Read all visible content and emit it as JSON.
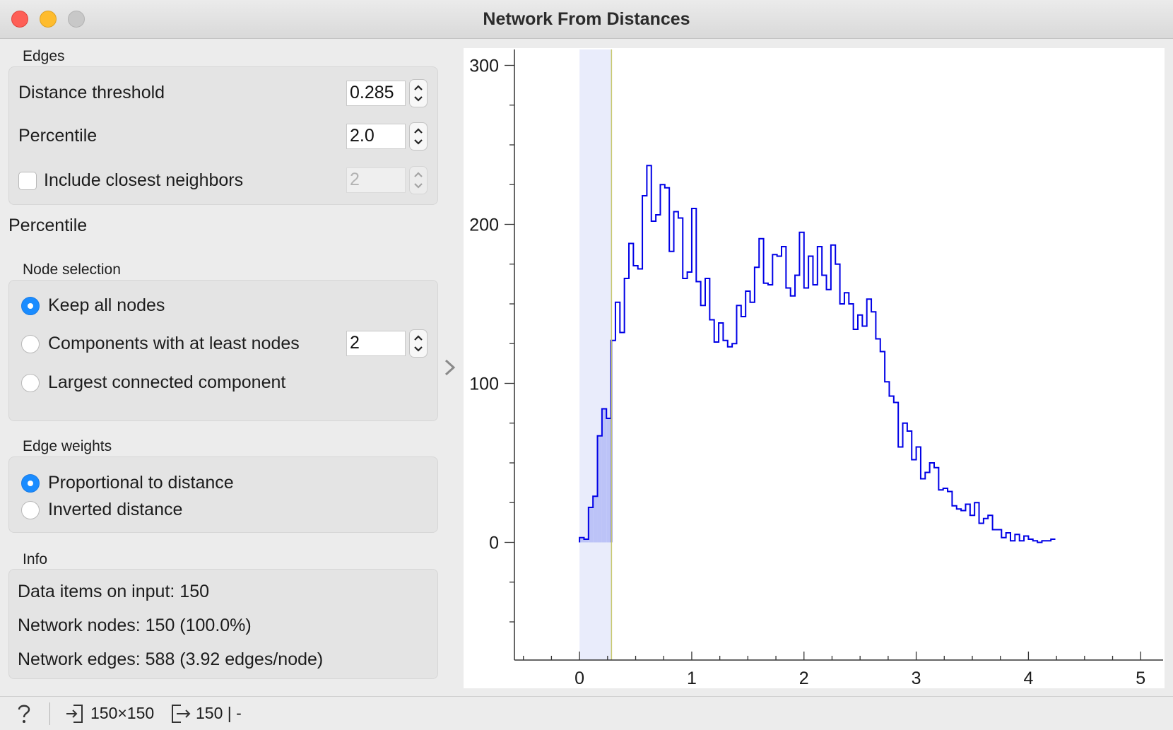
{
  "window": {
    "title": "Network From Distances"
  },
  "edges": {
    "group_title": "Edges",
    "distance_threshold": {
      "label": "Distance threshold",
      "value": "0.285"
    },
    "percentile": {
      "label": "Percentile",
      "value": "2.0"
    },
    "closest_neighbors": {
      "label": "Include closest neighbors",
      "checked": false,
      "value": "2"
    }
  },
  "percentile_note": "Percentile",
  "node_selection": {
    "group_title": "Node selection",
    "options": [
      {
        "label": "Keep all nodes",
        "selected": true
      },
      {
        "label": "Components with at least nodes",
        "selected": false
      },
      {
        "label": "Largest connected component",
        "selected": false
      }
    ],
    "min_nodes_value": "2"
  },
  "edge_weights": {
    "group_title": "Edge weights",
    "options": [
      {
        "label": "Proportional to distance",
        "selected": true
      },
      {
        "label": "Inverted distance",
        "selected": false
      }
    ]
  },
  "info": {
    "group_title": "Info",
    "lines": [
      "Data items on input: 150",
      "Network nodes: 150 (100.0%)",
      "Network edges: 588 (3.92 edges/node)"
    ]
  },
  "statusbar": {
    "input_summary": "150×150",
    "output_summary": "150 | -"
  },
  "colors": {
    "histogram": "#0000e6",
    "selection_fill": "#e9ecfb",
    "selected_bars": "#bcc3f7",
    "threshold_line": "#c8c86e",
    "accent": "#1a8cff"
  },
  "chart_data": {
    "type": "histogram",
    "x_ticks": [
      "0",
      "1",
      "2",
      "3",
      "4",
      "5"
    ],
    "y_ticks": [
      "0",
      "100",
      "200",
      "300"
    ],
    "xlim": [
      -0.58,
      5.2
    ],
    "ylim": [
      -74,
      310
    ],
    "bin_width": 0.04,
    "bins_start": 0,
    "counts": [
      3,
      2,
      22,
      29,
      67,
      84,
      78,
      127,
      151,
      132,
      166,
      188,
      174,
      172,
      218,
      237,
      202,
      206,
      225,
      223,
      183,
      208,
      204,
      166,
      170,
      210,
      164,
      149,
      166,
      140,
      126,
      138,
      127,
      123,
      125,
      149,
      142,
      158,
      151,
      173,
      191,
      163,
      162,
      181,
      180,
      186,
      160,
      155,
      168,
      195,
      160,
      180,
      162,
      186,
      168,
      159,
      187,
      175,
      150,
      157,
      150,
      134,
      143,
      136,
      153,
      145,
      128,
      120,
      101,
      92,
      88,
      60,
      75,
      70,
      52,
      60,
      40,
      44,
      50,
      47,
      33,
      34,
      32,
      23,
      21,
      20,
      24,
      17,
      25,
      12,
      15,
      17,
      8,
      8,
      3,
      6,
      1,
      5,
      1,
      4,
      2,
      1,
      0,
      1,
      1,
      2
    ]
  }
}
